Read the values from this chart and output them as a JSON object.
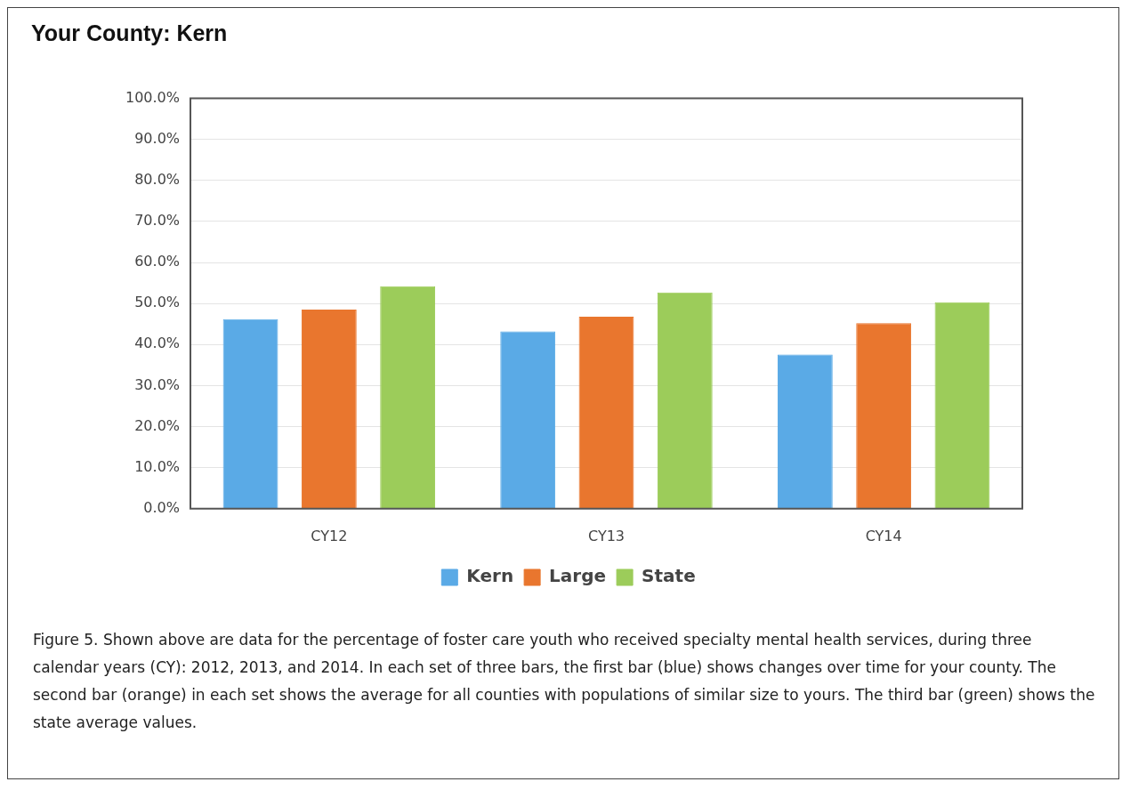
{
  "chart_data": {
    "type": "bar",
    "title": "Your County:  Kern",
    "categories": [
      "CY12",
      "CY13",
      "CY14"
    ],
    "series": [
      {
        "name": "Kern",
        "color": "#5aaae6",
        "values": [
          46.2,
          43.2,
          37.6
        ]
      },
      {
        "name": "Large",
        "color": "#e9762e",
        "values": [
          48.5,
          46.8,
          45.2
        ]
      },
      {
        "name": "State",
        "color": "#9ccc5a",
        "values": [
          54.2,
          52.7,
          50.3
        ]
      }
    ],
    "ylim": [
      0,
      100
    ],
    "yticks": [
      {
        "value": 0,
        "label": "0.0%"
      },
      {
        "value": 10,
        "label": "10.0%"
      },
      {
        "value": 20,
        "label": "20.0%"
      },
      {
        "value": 30,
        "label": "30.0%"
      },
      {
        "value": 40,
        "label": "40.0%"
      },
      {
        "value": 50,
        "label": "50.0%"
      },
      {
        "value": 60,
        "label": "60.0%"
      },
      {
        "value": 70,
        "label": "70.0%"
      },
      {
        "value": 80,
        "label": "80.0%"
      },
      {
        "value": 90,
        "label": "90.0%"
      },
      {
        "value": 100,
        "label": "100.0%"
      }
    ],
    "grid": "y",
    "legend": "bottom",
    "annotations": [
      "Figure 5.  Shown above are data for the percentage of foster care youth who received specialty mental health services, during three calendar years (CY):  2012, 2013, and 2014.  In each set of three bars, the first bar (blue) shows changes over time for your county.  The second bar (orange) in each set shows the average for all counties with populations of similar size to yours.  The third bar (green) shows the state average values."
    ]
  }
}
